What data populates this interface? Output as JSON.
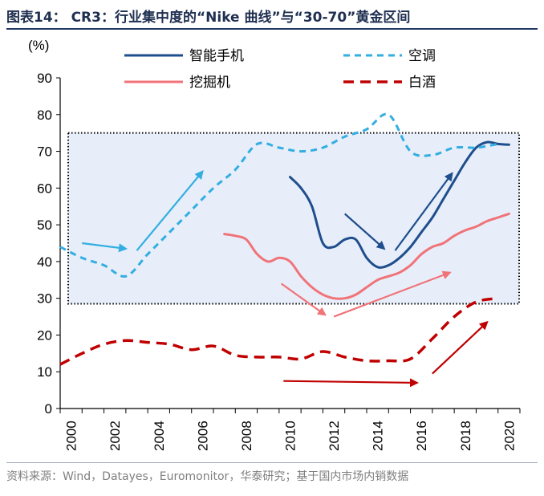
{
  "header": {
    "title": "图表14： CR3：行业集中度的“Nike 曲线”与“30-70”黄金区间"
  },
  "footer": {
    "source": "资料来源：Wind，Datayes，Euromonitor，华泰研究；基于国内市场内销数据"
  },
  "chart_data": {
    "type": "line",
    "ylabel": "(%)",
    "ylim": [
      0,
      90
    ],
    "yticks": [
      "0",
      "10",
      "20",
      "30",
      "40",
      "50",
      "60",
      "70",
      "80",
      "90"
    ],
    "xlim": [
      2000,
      2021
    ],
    "xticks": [
      "2000",
      "2002",
      "2004",
      "2006",
      "2008",
      "2010",
      "2012",
      "2014",
      "2016",
      "2018",
      "2020"
    ],
    "legend_position": "top",
    "highlight_band": {
      "from": 28.5,
      "to": 75
    },
    "series": [
      {
        "name": "智能手机",
        "color": "#1f4e8c",
        "style": "solid",
        "points": [
          [
            2010.5,
            63
          ],
          [
            2011,
            60
          ],
          [
            2011.5,
            55
          ],
          [
            2012,
            45
          ],
          [
            2012.5,
            44
          ],
          [
            2013,
            46
          ],
          [
            2013.5,
            46
          ],
          [
            2014,
            41
          ],
          [
            2014.5,
            38.5
          ],
          [
            2015,
            39
          ],
          [
            2015.5,
            41
          ],
          [
            2016,
            44
          ],
          [
            2016.5,
            48
          ],
          [
            2017,
            52
          ],
          [
            2017.5,
            57
          ],
          [
            2018,
            62
          ],
          [
            2018.5,
            67
          ],
          [
            2019,
            71
          ],
          [
            2019.5,
            72.5
          ],
          [
            2020,
            72
          ],
          [
            2020.5,
            71.8
          ]
        ]
      },
      {
        "name": "空调",
        "color": "#33aee0",
        "style": "dashed",
        "points": [
          [
            2000,
            44
          ],
          [
            2001,
            41
          ],
          [
            2002,
            39
          ],
          [
            2003,
            36
          ],
          [
            2004,
            42
          ],
          [
            2005,
            48
          ],
          [
            2006,
            54
          ],
          [
            2007,
            60
          ],
          [
            2008,
            65
          ],
          [
            2009,
            72
          ],
          [
            2010,
            71
          ],
          [
            2011,
            70
          ],
          [
            2012,
            71
          ],
          [
            2013,
            74
          ],
          [
            2014,
            76
          ],
          [
            2015,
            80
          ],
          [
            2016,
            70
          ],
          [
            2017,
            69
          ],
          [
            2018,
            71
          ],
          [
            2019,
            71
          ],
          [
            2020,
            72
          ]
        ]
      },
      {
        "name": "挖掘机",
        "color": "#f07378",
        "style": "solid",
        "points": [
          [
            2007.5,
            47.5
          ],
          [
            2008,
            47
          ],
          [
            2008.5,
            46
          ],
          [
            2009,
            42
          ],
          [
            2009.5,
            40
          ],
          [
            2010,
            41
          ],
          [
            2010.5,
            40
          ],
          [
            2011,
            36
          ],
          [
            2011.5,
            33
          ],
          [
            2012,
            31
          ],
          [
            2012.5,
            30
          ],
          [
            2013,
            30
          ],
          [
            2013.5,
            31
          ],
          [
            2014,
            33
          ],
          [
            2014.5,
            35
          ],
          [
            2015,
            36
          ],
          [
            2015.5,
            37
          ],
          [
            2016,
            39
          ],
          [
            2016.5,
            42
          ],
          [
            2017,
            44
          ],
          [
            2017.5,
            45
          ],
          [
            2018,
            47
          ],
          [
            2018.5,
            48.5
          ],
          [
            2019,
            49.5
          ],
          [
            2019.5,
            51
          ],
          [
            2020,
            52
          ],
          [
            2020.5,
            53
          ]
        ]
      },
      {
        "name": "白酒",
        "color": "#c00000",
        "style": "dashed",
        "points": [
          [
            2000,
            12
          ],
          [
            2001,
            15
          ],
          [
            2002,
            17.5
          ],
          [
            2003,
            18.5
          ],
          [
            2004,
            18
          ],
          [
            2005,
            17.5
          ],
          [
            2006,
            16
          ],
          [
            2007,
            17
          ],
          [
            2008,
            14.5
          ],
          [
            2009,
            14
          ],
          [
            2010,
            14
          ],
          [
            2011,
            13.5
          ],
          [
            2012,
            15.5
          ],
          [
            2013,
            14
          ],
          [
            2014,
            13
          ],
          [
            2015,
            13
          ],
          [
            2016,
            13.5
          ],
          [
            2017,
            19
          ],
          [
            2018,
            25
          ],
          [
            2019,
            29
          ],
          [
            2020,
            30
          ]
        ]
      }
    ],
    "arrows": [
      {
        "color": "#33aee0",
        "from": [
          2001,
          45
        ],
        "to": [
          2003,
          43.5
        ]
      },
      {
        "color": "#33aee0",
        "from": [
          2003.5,
          43
        ],
        "to": [
          2006.5,
          64.5
        ]
      },
      {
        "color": "#1f4e8c",
        "from": [
          2013,
          53
        ],
        "to": [
          2014.8,
          43.5
        ]
      },
      {
        "color": "#1f4e8c",
        "from": [
          2015.3,
          43
        ],
        "to": [
          2017.9,
          64
        ]
      },
      {
        "color": "#f07378",
        "from": [
          2010.1,
          34
        ],
        "to": [
          2012.1,
          25.5
        ]
      },
      {
        "color": "#f07378",
        "from": [
          2012.5,
          25
        ],
        "to": [
          2017.8,
          37
        ]
      },
      {
        "color": "#c00000",
        "from": [
          2010.2,
          7.5
        ],
        "to": [
          2016.3,
          7
        ]
      },
      {
        "color": "#c00000",
        "from": [
          2017,
          9.5
        ],
        "to": [
          2019.5,
          23.5
        ]
      }
    ]
  }
}
